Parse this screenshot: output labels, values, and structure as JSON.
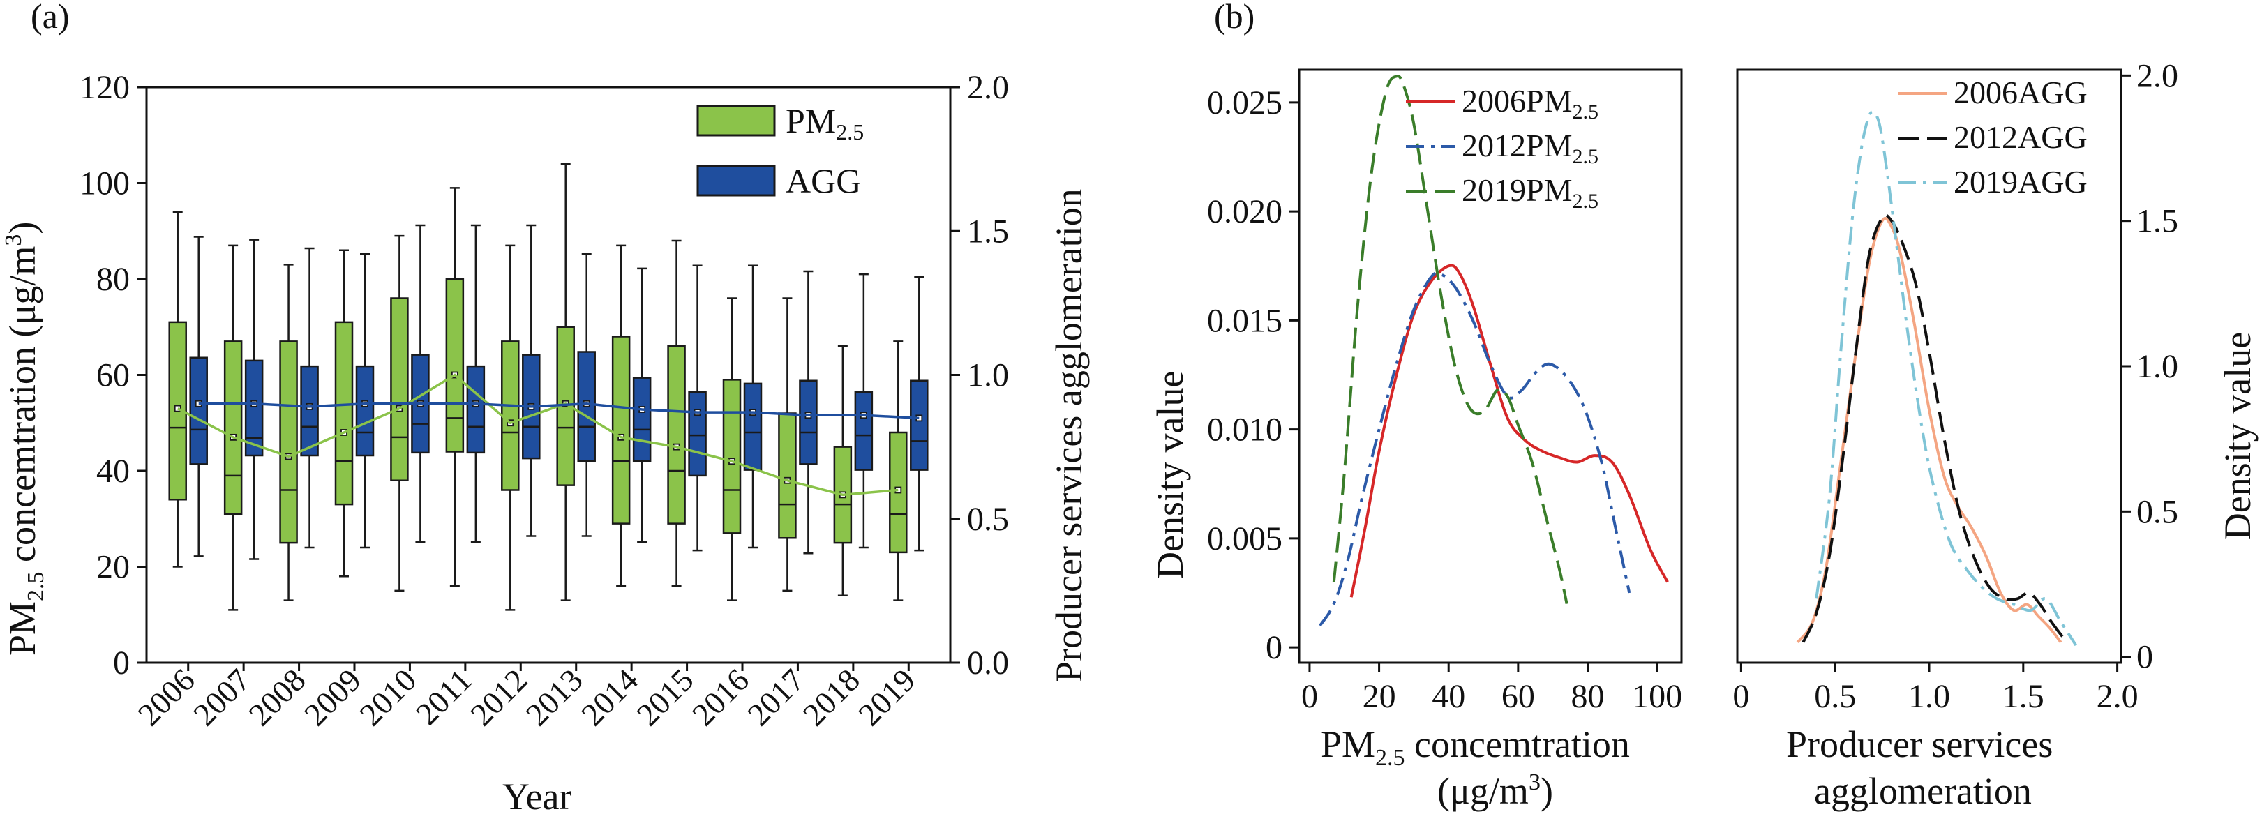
{
  "panel_labels": {
    "a": "(a)",
    "b": "(b)"
  },
  "colors": {
    "pm25": "#8bc34a",
    "agg": "#1f4e9e",
    "dark_edge": "#1a1a1a",
    "red": "#d62728",
    "blue_dash": "#2c5aa8",
    "green_dash": "#3a7d2a",
    "peach": "#f4a582",
    "black": "#111111",
    "light_blue": "#7fc4d6"
  },
  "chart_data": [
    {
      "type": "box",
      "panel": "(a)",
      "xlabel": "Year",
      "ylabel_left": "PM2.5 concemtration (μg/m3)",
      "ylabel_left_parts": {
        "pre": "PM",
        "sub": "2.5",
        "mid": " concemtration (μg/m",
        "sup": "3",
        "post": ")"
      },
      "ylabel_right": "Producer services agglomeration",
      "ylim_left": [
        0,
        120
      ],
      "yticks_left": [
        0,
        20,
        40,
        60,
        80,
        100,
        120
      ],
      "ylim_right": [
        0.0,
        2.0
      ],
      "yticks_right": [
        "0.0",
        "0.5",
        "1.0",
        "1.5",
        "2.0"
      ],
      "categories": [
        "2006",
        "2007",
        "2008",
        "2009",
        "2010",
        "2011",
        "2012",
        "2013",
        "2014",
        "2015",
        "2016",
        "2017",
        "2018",
        "2019"
      ],
      "legend": [
        {
          "name": "PM2.5",
          "base": "PM",
          "sub": "2.5",
          "color": "#8bc34a"
        },
        {
          "name": "AGG",
          "base": "AGG",
          "sub": "",
          "color": "#1f4e9e"
        }
      ],
      "series": [
        {
          "name": "PM2.5",
          "axis": "left",
          "whisker_low": [
            20,
            11,
            13,
            18,
            15,
            16,
            11,
            13,
            16,
            16,
            13,
            15,
            14,
            13
          ],
          "q1": [
            34,
            31,
            25,
            33,
            38,
            44,
            36,
            37,
            29,
            29,
            27,
            26,
            25,
            23
          ],
          "median": [
            49,
            39,
            36,
            42,
            47,
            51,
            48,
            49,
            42,
            40,
            36,
            33,
            33,
            31
          ],
          "q3": [
            71,
            67,
            67,
            71,
            76,
            80,
            67,
            70,
            68,
            66,
            59,
            52,
            45,
            48
          ],
          "whisker_high": [
            94,
            87,
            83,
            86,
            89,
            99,
            87,
            104,
            87,
            88,
            76,
            76,
            66,
            67
          ],
          "mean": [
            53,
            47,
            43,
            48,
            53,
            60,
            50,
            54,
            47,
            45,
            42,
            38,
            35,
            36
          ]
        },
        {
          "name": "AGG",
          "axis": "right",
          "whisker_low": [
            0.37,
            0.36,
            0.4,
            0.4,
            0.42,
            0.42,
            0.44,
            0.44,
            0.42,
            0.39,
            0.4,
            0.38,
            0.4,
            0.39
          ],
          "q1": [
            0.69,
            0.72,
            0.72,
            0.72,
            0.73,
            0.73,
            0.71,
            0.7,
            0.7,
            0.65,
            0.67,
            0.69,
            0.67,
            0.67
          ],
          "median": [
            0.81,
            0.78,
            0.82,
            0.8,
            0.83,
            0.82,
            0.82,
            0.82,
            0.81,
            0.79,
            0.8,
            0.8,
            0.79,
            0.77
          ],
          "q3": [
            1.06,
            1.05,
            1.03,
            1.03,
            1.07,
            1.03,
            1.07,
            1.08,
            0.99,
            0.94,
            0.97,
            0.98,
            0.94,
            0.98
          ],
          "whisker_high": [
            1.48,
            1.47,
            1.44,
            1.42,
            1.52,
            1.52,
            1.52,
            1.42,
            1.37,
            1.38,
            1.38,
            1.36,
            1.35,
            1.34
          ],
          "mean": [
            0.9,
            0.9,
            0.89,
            0.9,
            0.9,
            0.9,
            0.89,
            0.9,
            0.88,
            0.87,
            0.87,
            0.86,
            0.86,
            0.85
          ]
        }
      ]
    },
    {
      "type": "line",
      "panel": "(b) left",
      "xlabel_line1": "PM2.5 concemtration",
      "xlabel_line1_parts": {
        "pre": "PM",
        "sub": "2.5",
        "post": " concemtration"
      },
      "xlabel_line2": "(μg/m3)",
      "xlabel_line2_parts": {
        "pre": "(μg/m",
        "sup": "3",
        "post": ")"
      },
      "ylabel": "Density value",
      "xlim": [
        -3,
        107
      ],
      "xticks": [
        0,
        20,
        40,
        60,
        80,
        100
      ],
      "ylim": [
        -0.0007,
        0.0265
      ],
      "yticks": [
        "0",
        "0.005",
        "0.010",
        "0.015",
        "0.020",
        "0.025"
      ],
      "legend": [
        {
          "name": "2006PM2.5",
          "base": "2006PM",
          "sub": "2.5"
        },
        {
          "name": "2012PM2.5",
          "base": "2012PM",
          "sub": "2.5"
        },
        {
          "name": "2019PM2.5",
          "base": "2019PM",
          "sub": "2.5"
        }
      ],
      "series": [
        {
          "name": "2006PM2.5",
          "color": "#d62728",
          "dash": "solid",
          "x": [
            12,
            16,
            20,
            25,
            30,
            35,
            40,
            43,
            47,
            52,
            57,
            62,
            67,
            72,
            77,
            82,
            87,
            92,
            98,
            103
          ],
          "y": [
            0.0023,
            0.0055,
            0.009,
            0.0125,
            0.0153,
            0.0168,
            0.0175,
            0.0172,
            0.0157,
            0.013,
            0.0105,
            0.0095,
            0.009,
            0.0087,
            0.0085,
            0.0088,
            0.0085,
            0.007,
            0.0045,
            0.003
          ]
        },
        {
          "name": "2012PM2.5",
          "color": "#2c5aa8",
          "dash": "dashdot",
          "x": [
            3,
            7,
            11,
            15,
            20,
            25,
            30,
            35,
            38,
            42,
            47,
            52,
            57,
            61,
            65,
            69,
            74,
            79,
            84,
            88,
            92
          ],
          "y": [
            0.001,
            0.002,
            0.004,
            0.0068,
            0.01,
            0.013,
            0.0155,
            0.017,
            0.0171,
            0.0165,
            0.015,
            0.013,
            0.0115,
            0.0118,
            0.0126,
            0.013,
            0.0124,
            0.011,
            0.0085,
            0.0055,
            0.0025
          ]
        },
        {
          "name": "2019PM2.5",
          "color": "#3a7d2a",
          "dash": "longdash",
          "x": [
            7,
            10,
            14,
            18,
            22,
            25,
            27,
            30,
            34,
            38,
            42,
            46,
            50,
            54,
            57,
            60,
            64,
            68,
            72,
            74
          ],
          "y": [
            0.003,
            0.008,
            0.016,
            0.022,
            0.0255,
            0.0262,
            0.0258,
            0.024,
            0.02,
            0.016,
            0.0128,
            0.011,
            0.0108,
            0.0118,
            0.0115,
            0.0102,
            0.0085,
            0.006,
            0.0035,
            0.002
          ]
        }
      ]
    },
    {
      "type": "line",
      "panel": "(b) right",
      "xlabel_line1": "Producer services",
      "xlabel_line2": "agglomeration",
      "ylabel": "Density value",
      "xlim": [
        -0.02,
        2.02
      ],
      "xticks": [
        "0",
        "0.5",
        "1.0",
        "1.5",
        "2.0"
      ],
      "xtick_values": [
        0,
        0.5,
        1.0,
        1.5,
        2.0
      ],
      "ylim": [
        -0.02,
        2.02
      ],
      "yticks": [
        "0",
        "0.5",
        "1.0",
        "1.5",
        "2.0"
      ],
      "legend": [
        {
          "name": "2006AGG"
        },
        {
          "name": "2012AGG"
        },
        {
          "name": "2019AGG"
        }
      ],
      "series": [
        {
          "name": "2006AGG",
          "color": "#f4a582",
          "dash": "solid",
          "x": [
            0.3,
            0.38,
            0.45,
            0.52,
            0.6,
            0.68,
            0.75,
            0.8,
            0.85,
            0.92,
            1.0,
            1.08,
            1.15,
            1.22,
            1.3,
            1.38,
            1.45,
            1.52,
            1.58,
            1.64,
            1.7
          ],
          "y": [
            0.05,
            0.12,
            0.3,
            0.62,
            1.0,
            1.35,
            1.5,
            1.48,
            1.38,
            1.15,
            0.85,
            0.62,
            0.52,
            0.45,
            0.35,
            0.22,
            0.16,
            0.18,
            0.14,
            0.1,
            0.05
          ]
        },
        {
          "name": "2012AGG",
          "color": "#111111",
          "dash": "longdash",
          "x": [
            0.33,
            0.4,
            0.47,
            0.54,
            0.61,
            0.68,
            0.75,
            0.8,
            0.86,
            0.93,
            1.0,
            1.08,
            1.16,
            1.24,
            1.32,
            1.4,
            1.47,
            1.53,
            1.59,
            1.65,
            1.72
          ],
          "y": [
            0.05,
            0.15,
            0.35,
            0.68,
            1.05,
            1.38,
            1.51,
            1.5,
            1.42,
            1.28,
            1.05,
            0.75,
            0.5,
            0.34,
            0.24,
            0.2,
            0.2,
            0.22,
            0.18,
            0.12,
            0.06
          ]
        },
        {
          "name": "2019AGG",
          "color": "#7fc4d6",
          "dash": "dashdot",
          "x": [
            0.4,
            0.47,
            0.53,
            0.59,
            0.64,
            0.68,
            0.71,
            0.74,
            0.78,
            0.83,
            0.9,
            0.98,
            1.05,
            1.12,
            1.2,
            1.28,
            1.36,
            1.45,
            1.54,
            1.62,
            1.7,
            1.78
          ],
          "y": [
            0.2,
            0.55,
            1.05,
            1.5,
            1.75,
            1.86,
            1.87,
            1.82,
            1.65,
            1.4,
            1.05,
            0.72,
            0.52,
            0.38,
            0.3,
            0.24,
            0.2,
            0.18,
            0.16,
            0.2,
            0.12,
            0.04
          ]
        }
      ]
    }
  ]
}
